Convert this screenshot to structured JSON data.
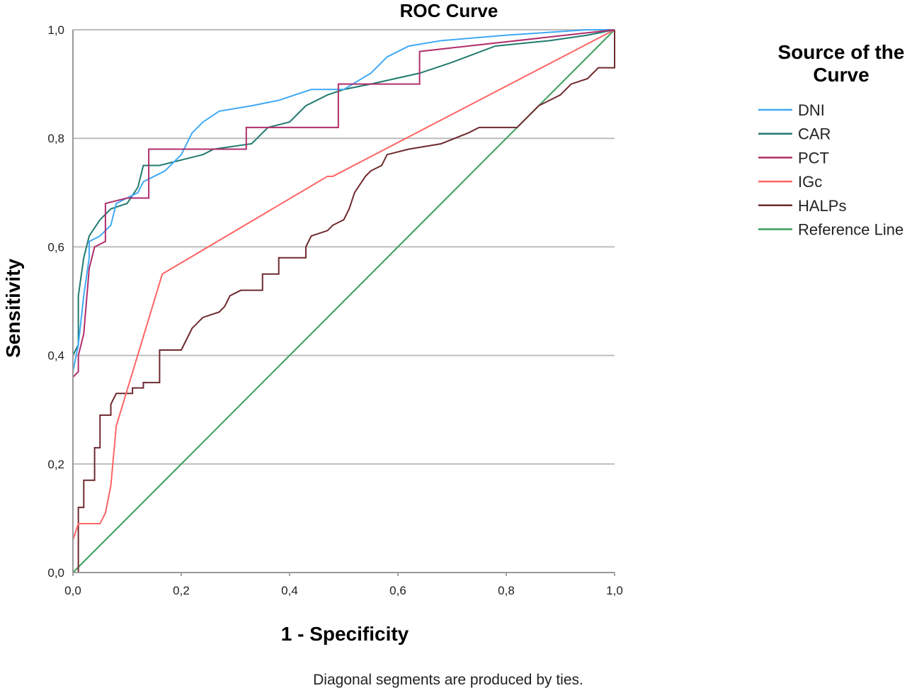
{
  "chart_data": {
    "type": "line",
    "title": "ROC Curve",
    "xlabel": "1 - Specificity",
    "ylabel": "Sensitivity",
    "xlim": [
      0,
      1
    ],
    "ylim": [
      0,
      1
    ],
    "xticks": [
      "0,0",
      "0,2",
      "0,4",
      "0,6",
      "0,8",
      "1,0"
    ],
    "yticks": [
      "0,0",
      "0,2",
      "0,4",
      "0,6",
      "0,8",
      "1,0"
    ],
    "grid": "horizontal",
    "legend_title": "Source of the Curve",
    "legend_position": "right",
    "footnote": "Diagonal segments are produced by ties.",
    "series": [
      {
        "name": "DNI",
        "color": "#3fa9f5",
        "points": [
          [
            0,
            0
          ],
          [
            0,
            0.37
          ],
          [
            0.01,
            0.42
          ],
          [
            0.02,
            0.51
          ],
          [
            0.03,
            0.58
          ],
          [
            0.03,
            0.61
          ],
          [
            0.05,
            0.62
          ],
          [
            0.07,
            0.64
          ],
          [
            0.08,
            0.68
          ],
          [
            0.1,
            0.69
          ],
          [
            0.12,
            0.7
          ],
          [
            0.13,
            0.72
          ],
          [
            0.15,
            0.73
          ],
          [
            0.17,
            0.74
          ],
          [
            0.2,
            0.77
          ],
          [
            0.22,
            0.81
          ],
          [
            0.24,
            0.83
          ],
          [
            0.27,
            0.85
          ],
          [
            0.33,
            0.86
          ],
          [
            0.38,
            0.87
          ],
          [
            0.44,
            0.89
          ],
          [
            0.5,
            0.89
          ],
          [
            0.55,
            0.92
          ],
          [
            0.58,
            0.95
          ],
          [
            0.62,
            0.97
          ],
          [
            0.68,
            0.98
          ],
          [
            0.8,
            0.99
          ],
          [
            0.95,
            1.0
          ],
          [
            1,
            1
          ]
        ]
      },
      {
        "name": "CAR",
        "color": "#217a70",
        "points": [
          [
            0,
            0
          ],
          [
            0,
            0.4
          ],
          [
            0.01,
            0.42
          ],
          [
            0.01,
            0.51
          ],
          [
            0.02,
            0.58
          ],
          [
            0.03,
            0.62
          ],
          [
            0.05,
            0.65
          ],
          [
            0.07,
            0.67
          ],
          [
            0.1,
            0.68
          ],
          [
            0.12,
            0.71
          ],
          [
            0.13,
            0.75
          ],
          [
            0.16,
            0.75
          ],
          [
            0.2,
            0.76
          ],
          [
            0.24,
            0.77
          ],
          [
            0.26,
            0.78
          ],
          [
            0.33,
            0.79
          ],
          [
            0.36,
            0.82
          ],
          [
            0.4,
            0.83
          ],
          [
            0.43,
            0.86
          ],
          [
            0.47,
            0.88
          ],
          [
            0.5,
            0.89
          ],
          [
            0.55,
            0.9
          ],
          [
            0.64,
            0.92
          ],
          [
            0.7,
            0.94
          ],
          [
            0.78,
            0.97
          ],
          [
            0.88,
            0.98
          ],
          [
            0.95,
            0.99
          ],
          [
            1,
            1
          ]
        ]
      },
      {
        "name": "PCT",
        "color": "#b02d6c",
        "points": [
          [
            0,
            0
          ],
          [
            0,
            0.36
          ],
          [
            0.01,
            0.37
          ],
          [
            0.01,
            0.4
          ],
          [
            0.02,
            0.44
          ],
          [
            0.03,
            0.56
          ],
          [
            0.04,
            0.6
          ],
          [
            0.06,
            0.61
          ],
          [
            0.06,
            0.68
          ],
          [
            0.1,
            0.69
          ],
          [
            0.14,
            0.69
          ],
          [
            0.14,
            0.78
          ],
          [
            0.32,
            0.78
          ],
          [
            0.32,
            0.82
          ],
          [
            0.49,
            0.82
          ],
          [
            0.49,
            0.9
          ],
          [
            0.64,
            0.9
          ],
          [
            0.64,
            0.96
          ],
          [
            1,
            1
          ]
        ]
      },
      {
        "name": "IGc",
        "color": "#ff6464",
        "points": [
          [
            0,
            0.06
          ],
          [
            0.01,
            0.09
          ],
          [
            0.05,
            0.09
          ],
          [
            0.06,
            0.11
          ],
          [
            0.07,
            0.16
          ],
          [
            0.08,
            0.27
          ],
          [
            0.165,
            0.55
          ],
          [
            0.47,
            0.73
          ],
          [
            0.48,
            0.73
          ],
          [
            1,
            1
          ]
        ]
      },
      {
        "name": "HALPs",
        "color": "#6e2a2e",
        "points": [
          [
            0,
            0
          ],
          [
            0.01,
            0
          ],
          [
            0.01,
            0.12
          ],
          [
            0.02,
            0.12
          ],
          [
            0.02,
            0.17
          ],
          [
            0.04,
            0.17
          ],
          [
            0.04,
            0.23
          ],
          [
            0.05,
            0.23
          ],
          [
            0.05,
            0.29
          ],
          [
            0.07,
            0.29
          ],
          [
            0.07,
            0.31
          ],
          [
            0.08,
            0.33
          ],
          [
            0.11,
            0.33
          ],
          [
            0.11,
            0.34
          ],
          [
            0.13,
            0.34
          ],
          [
            0.13,
            0.35
          ],
          [
            0.16,
            0.35
          ],
          [
            0.16,
            0.41
          ],
          [
            0.2,
            0.41
          ],
          [
            0.21,
            0.43
          ],
          [
            0.22,
            0.45
          ],
          [
            0.24,
            0.47
          ],
          [
            0.27,
            0.48
          ],
          [
            0.28,
            0.49
          ],
          [
            0.29,
            0.51
          ],
          [
            0.31,
            0.52
          ],
          [
            0.35,
            0.52
          ],
          [
            0.35,
            0.55
          ],
          [
            0.38,
            0.55
          ],
          [
            0.38,
            0.58
          ],
          [
            0.43,
            0.58
          ],
          [
            0.43,
            0.6
          ],
          [
            0.44,
            0.62
          ],
          [
            0.47,
            0.63
          ],
          [
            0.48,
            0.64
          ],
          [
            0.5,
            0.65
          ],
          [
            0.51,
            0.67
          ],
          [
            0.52,
            0.7
          ],
          [
            0.54,
            0.73
          ],
          [
            0.55,
            0.74
          ],
          [
            0.57,
            0.75
          ],
          [
            0.58,
            0.77
          ],
          [
            0.62,
            0.78
          ],
          [
            0.68,
            0.79
          ],
          [
            0.73,
            0.81
          ],
          [
            0.75,
            0.82
          ],
          [
            0.82,
            0.82
          ],
          [
            0.84,
            0.84
          ],
          [
            0.86,
            0.86
          ],
          [
            0.9,
            0.88
          ],
          [
            0.92,
            0.9
          ],
          [
            0.95,
            0.91
          ],
          [
            0.97,
            0.93
          ],
          [
            1,
            0.93
          ],
          [
            1,
            1
          ]
        ]
      },
      {
        "name": "Reference Line",
        "color": "#3a9e5a",
        "points": [
          [
            0,
            0
          ],
          [
            1,
            1
          ]
        ]
      }
    ]
  }
}
